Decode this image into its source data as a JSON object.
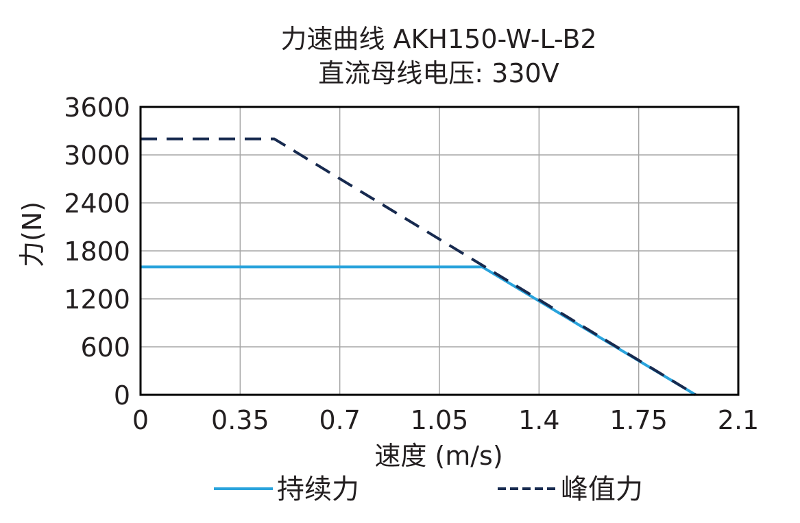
{
  "chart_data": {
    "type": "line",
    "title": "力速曲线 AKH150-W-L-B2",
    "subtitle": "直流母线电压: 330V",
    "xlabel": "速度 (m/s)",
    "ylabel": "力(N)",
    "xlim": [
      0,
      2.1
    ],
    "ylim": [
      0,
      3600
    ],
    "xticks": [
      0,
      0.35,
      0.7,
      1.05,
      1.4,
      1.75,
      2.1
    ],
    "xtick_labels": [
      "0",
      "0.35",
      "0.7",
      "1.05",
      "1.4",
      "1.75",
      "2.1"
    ],
    "yticks": [
      0,
      600,
      1200,
      1800,
      2400,
      3000,
      3600
    ],
    "ytick_labels": [
      "0",
      "600",
      "1200",
      "1800",
      "2400",
      "3000",
      "3600"
    ],
    "grid": true,
    "legend_position": "bottom",
    "series": [
      {
        "name": "持续力",
        "color": "#29a3dc",
        "style": "solid",
        "x": [
          0,
          1.2,
          1.95
        ],
        "y": [
          1600,
          1600,
          0
        ]
      },
      {
        "name": "峰值力",
        "color": "#172a4f",
        "style": "dashed",
        "x": [
          0,
          0.47,
          1.95
        ],
        "y": [
          3200,
          3200,
          0
        ]
      }
    ]
  }
}
